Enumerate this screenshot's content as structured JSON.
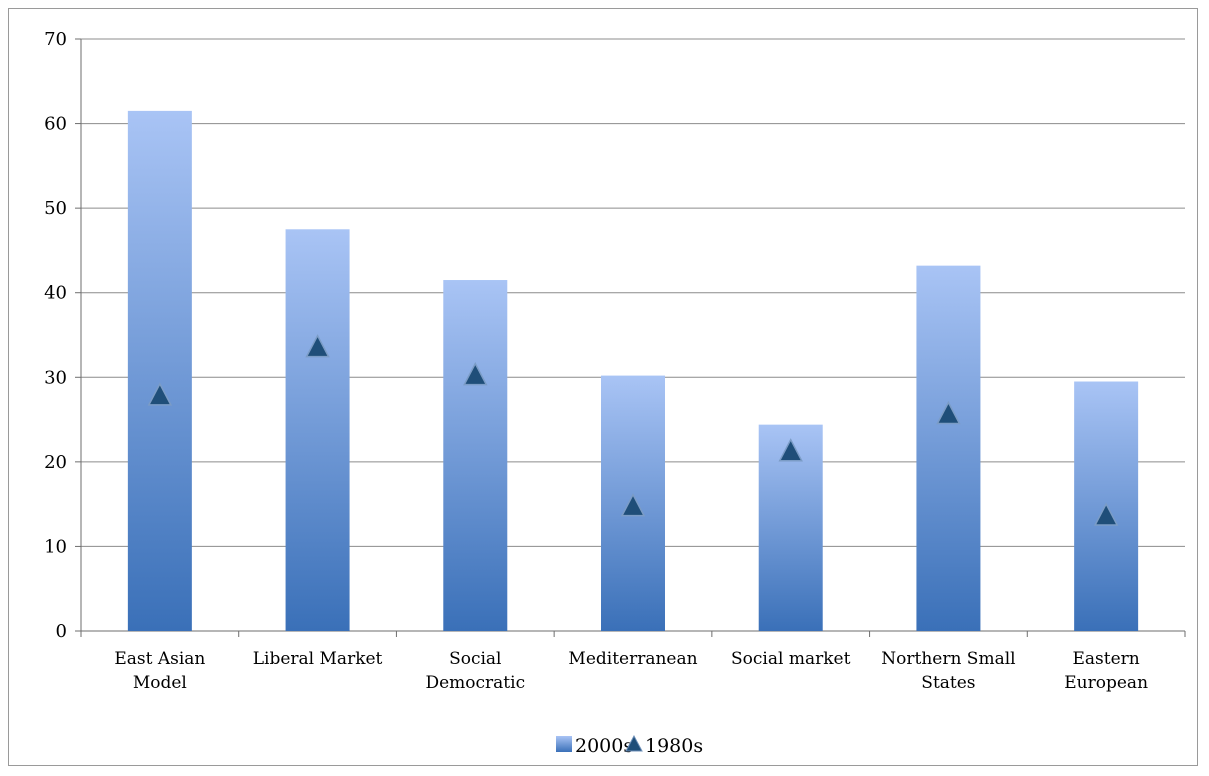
{
  "chart_data": {
    "type": "bar",
    "title": "",
    "xlabel": "",
    "ylabel": "",
    "ylim": [
      0,
      70
    ],
    "yticks": [
      0,
      10,
      20,
      30,
      40,
      50,
      60,
      70
    ],
    "grid": true,
    "legend_position": "bottom",
    "categories": [
      [
        "East Asian",
        "Model"
      ],
      [
        "Liberal Market"
      ],
      [
        "Social",
        "Democratic"
      ],
      [
        "Mediterranean"
      ],
      [
        "Social market"
      ],
      [
        "Northern Small",
        "States"
      ],
      [
        "Eastern",
        "European"
      ]
    ],
    "series": [
      {
        "name": "2000s",
        "kind": "bar",
        "values": [
          61.5,
          47.5,
          41.5,
          30.2,
          24.4,
          43.2,
          29.5
        ],
        "color_top": "#a9c4f5",
        "color_bottom": "#3a70b8"
      },
      {
        "name": "1980s",
        "kind": "marker-triangle",
        "values": [
          27.8,
          33.5,
          30.2,
          14.7,
          21.2,
          25.6,
          13.6
        ],
        "color": "#1f4e79"
      }
    ]
  }
}
